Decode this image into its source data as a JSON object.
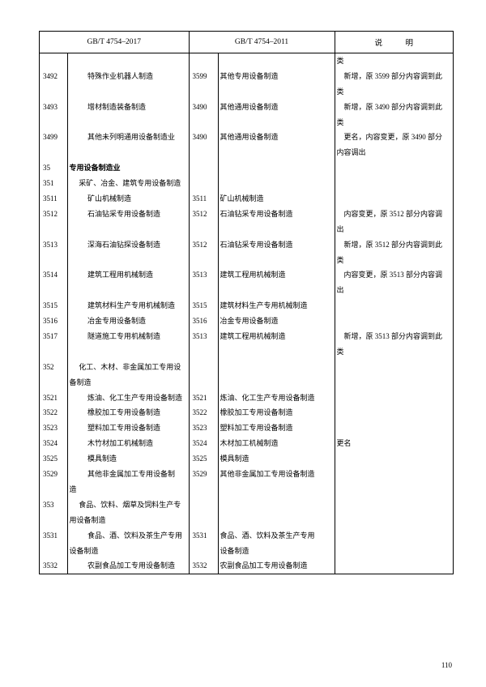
{
  "headers": {
    "col2017": "GB/T 4754–2017",
    "col2011": "GB/T 4754–2011",
    "note": "说　明"
  },
  "rows": [
    {
      "c2017": "",
      "n2017": "",
      "i2017": "",
      "c2011": "",
      "n2011": "",
      "note": "类",
      "noteClass": "note-wrap"
    },
    {
      "c2017": "3492",
      "n2017": "特殊作业机器人制造",
      "i2017": "indent2",
      "c2011": "3599",
      "n2011": "其他专用设备制造",
      "note": "新增，原 3599 部分内容调到此",
      "noteClass": ""
    },
    {
      "c2017": "",
      "n2017": "",
      "i2017": "",
      "c2011": "",
      "n2011": "",
      "note": "类",
      "noteClass": "note-wrap"
    },
    {
      "c2017": "3493",
      "n2017": "增材制造装备制造",
      "i2017": "indent2",
      "c2011": "3490",
      "n2011": "其他通用设备制造",
      "note": "新增，原 3490 部分内容调到此",
      "noteClass": ""
    },
    {
      "c2017": "",
      "n2017": "",
      "i2017": "",
      "c2011": "",
      "n2011": "",
      "note": "类",
      "noteClass": "note-wrap"
    },
    {
      "c2017": "3499",
      "n2017": "其他未列明通用设备制造业",
      "i2017": "indent2",
      "c2011": "3490",
      "n2011": "其他通用设备制造",
      "note": "更名，内容变更，原 3490 部分",
      "noteClass": ""
    },
    {
      "c2017": "",
      "n2017": "",
      "i2017": "",
      "c2011": "",
      "n2011": "",
      "note": "内容调出",
      "noteClass": "note-wrap"
    },
    {
      "c2017": "35",
      "n2017": "专用设备制造业",
      "i2017": "indent3 bold",
      "c2011": "",
      "n2011": "",
      "note": "",
      "noteClass": ""
    },
    {
      "c2017": "351",
      "n2017": "采矿、冶金、建筑专用设备制造",
      "i2017": "indent1",
      "c2011": "",
      "n2011": "",
      "note": "",
      "noteClass": ""
    },
    {
      "c2017": "3511",
      "n2017": "矿山机械制造",
      "i2017": "indent2",
      "c2011": "3511",
      "n2011": "矿山机械制造",
      "note": "",
      "noteClass": ""
    },
    {
      "c2017": "3512",
      "n2017": "石油钻采专用设备制造",
      "i2017": "indent2",
      "c2011": "3512",
      "n2011": "石油钻采专用设备制造",
      "note": "内容变更，原 3512 部分内容调",
      "noteClass": ""
    },
    {
      "c2017": "",
      "n2017": "",
      "i2017": "",
      "c2011": "",
      "n2011": "",
      "note": "出",
      "noteClass": "note-wrap"
    },
    {
      "c2017": "3513",
      "n2017": "深海石油钻探设备制造",
      "i2017": "indent2",
      "c2011": "3512",
      "n2011": "石油钻采专用设备制造",
      "note": "新增，原 3512 部分内容调到此",
      "noteClass": ""
    },
    {
      "c2017": "",
      "n2017": "",
      "i2017": "",
      "c2011": "",
      "n2011": "",
      "note": "类",
      "noteClass": "note-wrap"
    },
    {
      "c2017": "3514",
      "n2017": "建筑工程用机械制造",
      "i2017": "indent2",
      "c2011": "3513",
      "n2011": "建筑工程用机械制造",
      "note": "内容变更，原 3513 部分内容调",
      "noteClass": ""
    },
    {
      "c2017": "",
      "n2017": "",
      "i2017": "",
      "c2011": "",
      "n2011": "",
      "note": "出",
      "noteClass": "note-wrap"
    },
    {
      "c2017": "3515",
      "n2017": "建筑材料生产专用机械制造",
      "i2017": "indent2",
      "c2011": "3515",
      "n2011": "建筑材料生产专用机械制造",
      "note": "",
      "noteClass": ""
    },
    {
      "c2017": "3516",
      "n2017": "冶金专用设备制造",
      "i2017": "indent2",
      "c2011": "3516",
      "n2011": "冶金专用设备制造",
      "note": "",
      "noteClass": ""
    },
    {
      "c2017": "3517",
      "n2017": "隧道施工专用机械制造",
      "i2017": "indent2",
      "c2011": "3513",
      "n2011": "建筑工程用机械制造",
      "note": "新增，原 3513 部分内容调到此",
      "noteClass": ""
    },
    {
      "c2017": "",
      "n2017": "",
      "i2017": "",
      "c2011": "",
      "n2011": "",
      "note": "类",
      "noteClass": "note-wrap"
    },
    {
      "c2017": "352",
      "n2017": "化工、木材、非金属加工专用设",
      "i2017": "indent1",
      "c2011": "",
      "n2011": "",
      "note": "",
      "noteClass": ""
    },
    {
      "c2017": "",
      "n2017": "备制造",
      "i2017": "indent3",
      "c2011": "",
      "n2011": "",
      "note": "",
      "noteClass": ""
    },
    {
      "c2017": "3521",
      "n2017": "炼油、化工生产专用设备制造",
      "i2017": "indent2",
      "c2011": "3521",
      "n2011": "炼油、化工生产专用设备制造",
      "note": "",
      "noteClass": ""
    },
    {
      "c2017": "3522",
      "n2017": "橡胶加工专用设备制造",
      "i2017": "indent2",
      "c2011": "3522",
      "n2011": "橡胶加工专用设备制造",
      "note": "",
      "noteClass": ""
    },
    {
      "c2017": "3523",
      "n2017": "塑料加工专用设备制造",
      "i2017": "indent2",
      "c2011": "3523",
      "n2011": "塑料加工专用设备制造",
      "note": "",
      "noteClass": ""
    },
    {
      "c2017": "3524",
      "n2017": "木竹材加工机械制造",
      "i2017": "indent2",
      "c2011": "3524",
      "n2011": "木材加工机械制造",
      "note": "更名",
      "noteClass": "note-wrap"
    },
    {
      "c2017": "3525",
      "n2017": "模具制造",
      "i2017": "indent2",
      "c2011": "3525",
      "n2011": "模具制造",
      "note": "",
      "noteClass": ""
    },
    {
      "c2017": "3529",
      "n2017": "其他非金属加工专用设备制",
      "i2017": "indent2",
      "c2011": "3529",
      "n2011": "其他非金属加工专用设备制造",
      "note": "",
      "noteClass": ""
    },
    {
      "c2017": "",
      "n2017": "造",
      "i2017": "indent3",
      "c2011": "",
      "n2011": "",
      "note": "",
      "noteClass": ""
    },
    {
      "c2017": "353",
      "n2017": "食品、饮料、烟草及饲料生产专",
      "i2017": "indent1",
      "c2011": "",
      "n2011": "",
      "note": "",
      "noteClass": ""
    },
    {
      "c2017": "",
      "n2017": "用设备制造",
      "i2017": "indent3",
      "c2011": "",
      "n2011": "",
      "note": "",
      "noteClass": ""
    },
    {
      "c2017": "3531",
      "n2017": "食品、酒、饮料及茶生产专用",
      "i2017": "indent2",
      "c2011": "3531",
      "n2011": "食品、酒、饮料及茶生产专用",
      "note": "",
      "noteClass": ""
    },
    {
      "c2017": "",
      "n2017": "设备制造",
      "i2017": "indent3",
      "c2011": "",
      "n2011": "设备制造",
      "note": "",
      "noteClass": ""
    },
    {
      "c2017": "3532",
      "n2017": "农副食品加工专用设备制造",
      "i2017": "indent2",
      "c2011": "3532",
      "n2011": "农副食品加工专用设备制造",
      "note": "",
      "noteClass": ""
    }
  ],
  "pageNumber": "110"
}
